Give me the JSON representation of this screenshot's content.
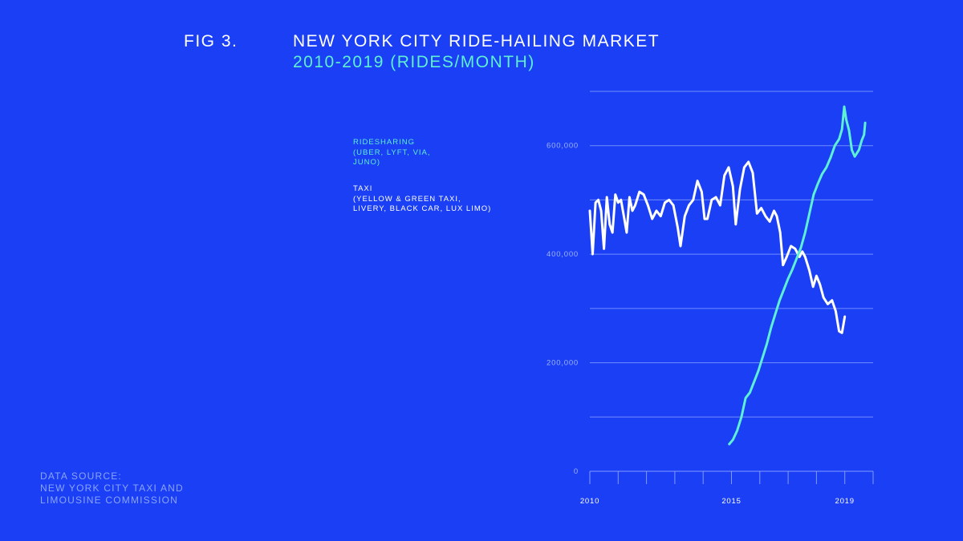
{
  "header": {
    "fig_label": "FIG 3.",
    "title": "NEW YORK CITY RIDE-HAILING MARKET",
    "subtitle": "2010-2019 (RIDES/MONTH)"
  },
  "legend": {
    "ridesharing": [
      "RIDESHARING",
      "(UBER, LYFT, VIA,",
      "JUNO)"
    ],
    "taxi": [
      "TAXI",
      "(YELLOW & GREEN TAXI,",
      "LIVERY, BLACK CAR, LUX LIMO)"
    ]
  },
  "source": [
    "DATA SOURCE:",
    "NEW YORK CITY TAXI AND",
    "LIMOUSINE COMMISSION"
  ],
  "colors": {
    "background": "#1a3ff5",
    "ridesharing": "#5ef0d2",
    "taxi": "#ffffff",
    "grid": "#8ea6ff",
    "axis_text": "#9fb4ff"
  },
  "chart_data": {
    "type": "line",
    "title": "NEW YORK CITY RIDE-HAILING MARKET",
    "subtitle": "2010-2019 (RIDES/MONTH)",
    "xlabel": "",
    "ylabel": "",
    "xlim": [
      2010.0,
      2020.0
    ],
    "ylim": [
      0,
      700000
    ],
    "x_ticks": [
      2010,
      2015,
      2019
    ],
    "x_minor_ticks": [
      2010,
      2011,
      2012,
      2013,
      2014,
      2015,
      2016,
      2017,
      2018,
      2019,
      2020
    ],
    "y_ticks": [
      0,
      200000,
      400000,
      600000
    ],
    "y_tick_labels": [
      "0",
      "200,000",
      "400,000",
      "600,000"
    ],
    "y_gridlines": [
      100000,
      200000,
      300000,
      400000,
      500000,
      600000,
      700000
    ],
    "grid": true,
    "legend_position": "top-left",
    "series": [
      {
        "name": "RIDESHARING (UBER, LYFT, VIA, JUNO)",
        "color": "#5ef0d2",
        "points": [
          [
            2014.92,
            50000
          ],
          [
            2015.05,
            58000
          ],
          [
            2015.2,
            75000
          ],
          [
            2015.35,
            100000
          ],
          [
            2015.5,
            135000
          ],
          [
            2015.65,
            145000
          ],
          [
            2015.8,
            165000
          ],
          [
            2015.95,
            185000
          ],
          [
            2016.1,
            210000
          ],
          [
            2016.25,
            235000
          ],
          [
            2016.4,
            265000
          ],
          [
            2016.55,
            290000
          ],
          [
            2016.7,
            315000
          ],
          [
            2016.85,
            335000
          ],
          [
            2017.0,
            355000
          ],
          [
            2017.15,
            372000
          ],
          [
            2017.3,
            392000
          ],
          [
            2017.45,
            412000
          ],
          [
            2017.6,
            440000
          ],
          [
            2017.75,
            475000
          ],
          [
            2017.9,
            510000
          ],
          [
            2018.05,
            530000
          ],
          [
            2018.2,
            548000
          ],
          [
            2018.35,
            560000
          ],
          [
            2018.5,
            578000
          ],
          [
            2018.65,
            600000
          ],
          [
            2018.8,
            612000
          ],
          [
            2018.9,
            630000
          ],
          [
            2018.98,
            672000
          ],
          [
            2019.05,
            648000
          ],
          [
            2019.15,
            628000
          ],
          [
            2019.25,
            592000
          ],
          [
            2019.35,
            580000
          ],
          [
            2019.5,
            592000
          ],
          [
            2019.6,
            610000
          ],
          [
            2019.68,
            620000
          ],
          [
            2019.72,
            642000
          ]
        ]
      },
      {
        "name": "TAXI (YELLOW & GREEN TAXI, LIVERY, BLACK CAR, LUX LIMO)",
        "color": "#ffffff",
        "points": [
          [
            2010.0,
            480000
          ],
          [
            2010.1,
            400000
          ],
          [
            2010.2,
            495000
          ],
          [
            2010.3,
            500000
          ],
          [
            2010.4,
            480000
          ],
          [
            2010.5,
            410000
          ],
          [
            2010.6,
            505000
          ],
          [
            2010.7,
            455000
          ],
          [
            2010.8,
            440000
          ],
          [
            2010.9,
            510000
          ],
          [
            2011.0,
            495000
          ],
          [
            2011.1,
            500000
          ],
          [
            2011.2,
            470000
          ],
          [
            2011.3,
            440000
          ],
          [
            2011.4,
            505000
          ],
          [
            2011.5,
            480000
          ],
          [
            2011.6,
            490000
          ],
          [
            2011.75,
            515000
          ],
          [
            2011.9,
            510000
          ],
          [
            2012.05,
            490000
          ],
          [
            2012.2,
            465000
          ],
          [
            2012.35,
            480000
          ],
          [
            2012.5,
            470000
          ],
          [
            2012.65,
            495000
          ],
          [
            2012.8,
            500000
          ],
          [
            2012.95,
            490000
          ],
          [
            2013.1,
            450000
          ],
          [
            2013.2,
            415000
          ],
          [
            2013.35,
            470000
          ],
          [
            2013.5,
            490000
          ],
          [
            2013.65,
            500000
          ],
          [
            2013.8,
            535000
          ],
          [
            2013.95,
            515000
          ],
          [
            2014.05,
            465000
          ],
          [
            2014.15,
            465000
          ],
          [
            2014.3,
            500000
          ],
          [
            2014.45,
            505000
          ],
          [
            2014.6,
            490000
          ],
          [
            2014.75,
            545000
          ],
          [
            2014.9,
            560000
          ],
          [
            2015.05,
            525000
          ],
          [
            2015.15,
            455000
          ],
          [
            2015.3,
            520000
          ],
          [
            2015.45,
            560000
          ],
          [
            2015.6,
            570000
          ],
          [
            2015.75,
            550000
          ],
          [
            2015.9,
            475000
          ],
          [
            2016.05,
            485000
          ],
          [
            2016.2,
            470000
          ],
          [
            2016.35,
            460000
          ],
          [
            2016.5,
            480000
          ],
          [
            2016.6,
            470000
          ],
          [
            2016.72,
            440000
          ],
          [
            2016.82,
            380000
          ],
          [
            2016.95,
            395000
          ],
          [
            2017.1,
            415000
          ],
          [
            2017.25,
            410000
          ],
          [
            2017.4,
            395000
          ],
          [
            2017.5,
            405000
          ],
          [
            2017.6,
            395000
          ],
          [
            2017.75,
            370000
          ],
          [
            2017.88,
            340000
          ],
          [
            2018.0,
            360000
          ],
          [
            2018.12,
            345000
          ],
          [
            2018.25,
            320000
          ],
          [
            2018.4,
            308000
          ],
          [
            2018.55,
            315000
          ],
          [
            2018.68,
            295000
          ],
          [
            2018.8,
            258000
          ],
          [
            2018.9,
            255000
          ],
          [
            2019.0,
            285000
          ]
        ]
      }
    ]
  }
}
